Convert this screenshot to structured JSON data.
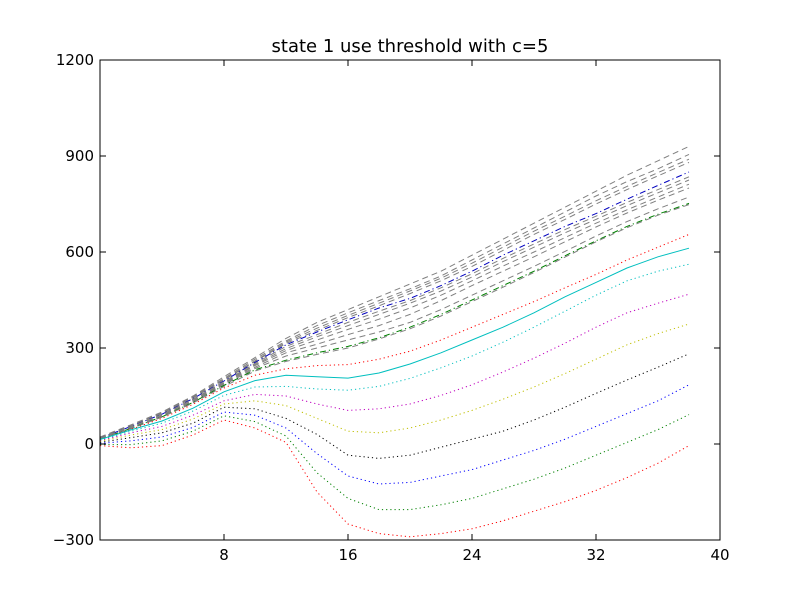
{
  "chart_data": {
    "type": "line",
    "title": "state 1 use threshold with c=5",
    "xlabel": "",
    "ylabel": "",
    "xlim": [
      0,
      40
    ],
    "ylim": [
      -300,
      1200
    ],
    "x_ticks": [
      8,
      16,
      24,
      32,
      40
    ],
    "y_ticks": [
      -300,
      0,
      300,
      600,
      900,
      1200
    ],
    "grid": false,
    "x": [
      0,
      2,
      4,
      6,
      8,
      10,
      12,
      14,
      16,
      18,
      20,
      22,
      24,
      26,
      28,
      30,
      32,
      34,
      36,
      38
    ],
    "series": [
      {
        "color": "#808080",
        "style": "dashed",
        "values": [
          22,
          60,
          100,
          150,
          210,
          270,
          330,
          380,
          420,
          460,
          500,
          540,
          590,
          640,
          690,
          740,
          790,
          840,
          885,
          930
        ]
      },
      {
        "color": "#808080",
        "style": "dashed",
        "values": [
          20,
          58,
          98,
          148,
          205,
          265,
          322,
          370,
          410,
          448,
          485,
          525,
          575,
          625,
          675,
          725,
          775,
          820,
          860,
          905
        ]
      },
      {
        "color": "#808080",
        "style": "dashed",
        "values": [
          20,
          57,
          96,
          146,
          202,
          260,
          318,
          362,
          402,
          440,
          478,
          518,
          565,
          615,
          665,
          712,
          760,
          805,
          848,
          890
        ]
      },
      {
        "color": "#808080",
        "style": "dashed",
        "values": [
          19,
          56,
          95,
          144,
          200,
          258,
          314,
          355,
          395,
          432,
          470,
          510,
          555,
          605,
          655,
          702,
          750,
          795,
          838,
          880
        ]
      },
      {
        "color": "#0000bf",
        "style": "dashdot",
        "values": [
          18,
          55,
          93,
          142,
          197,
          255,
          310,
          350,
          388,
          425,
          455,
          495,
          540,
          590,
          635,
          680,
          720,
          765,
          808,
          850
        ]
      },
      {
        "color": "#808080",
        "style": "dashed",
        "values": [
          18,
          54,
          92,
          140,
          195,
          252,
          305,
          342,
          380,
          415,
          448,
          488,
          532,
          580,
          625,
          670,
          712,
          755,
          795,
          835
        ]
      },
      {
        "color": "#808080",
        "style": "dashed",
        "values": [
          17,
          53,
          90,
          138,
          192,
          248,
          298,
          335,
          370,
          405,
          440,
          478,
          522,
          570,
          615,
          660,
          702,
          745,
          785,
          825
        ]
      },
      {
        "color": "#808080",
        "style": "dashed",
        "values": [
          17,
          52,
          88,
          135,
          190,
          245,
          292,
          325,
          358,
          390,
          425,
          465,
          510,
          556,
          600,
          645,
          690,
          732,
          772,
          812
        ]
      },
      {
        "color": "#808080",
        "style": "dashed",
        "values": [
          16,
          51,
          87,
          133,
          188,
          240,
          285,
          312,
          342,
          370,
          405,
          448,
          495,
          540,
          585,
          632,
          678,
          722,
          762,
          800
        ]
      },
      {
        "color": "#808080",
        "style": "dashed",
        "values": [
          16,
          50,
          86,
          131,
          185,
          236,
          275,
          300,
          325,
          350,
          380,
          420,
          465,
          510,
          555,
          602,
          650,
          695,
          735,
          772
        ]
      },
      {
        "color": "#008000",
        "style": "dashdot",
        "values": [
          15,
          49,
          85,
          130,
          183,
          232,
          262,
          285,
          305,
          332,
          365,
          405,
          450,
          495,
          540,
          588,
          635,
          680,
          718,
          752
        ]
      },
      {
        "color": "#808080",
        "style": "dashed",
        "values": [
          15,
          48,
          84,
          128,
          180,
          228,
          258,
          280,
          300,
          328,
          360,
          400,
          445,
          490,
          536,
          584,
          632,
          676,
          715,
          748
        ]
      },
      {
        "color": "#ff0000",
        "style": "dotted",
        "values": [
          14,
          46,
          80,
          124,
          175,
          215,
          235,
          245,
          248,
          265,
          290,
          325,
          365,
          405,
          445,
          488,
          530,
          575,
          615,
          655
        ]
      },
      {
        "color": "#00bfbf",
        "style": "solid",
        "values": [
          14,
          44,
          72,
          112,
          163,
          198,
          215,
          210,
          206,
          222,
          250,
          285,
          325,
          365,
          410,
          460,
          505,
          550,
          585,
          612
        ]
      },
      {
        "color": "#00bfbf",
        "style": "dotted",
        "values": [
          12,
          40,
          65,
          103,
          152,
          178,
          180,
          172,
          168,
          180,
          205,
          238,
          275,
          318,
          365,
          415,
          465,
          510,
          540,
          562
        ]
      },
      {
        "color": "#bf00bf",
        "style": "dotted",
        "values": [
          10,
          35,
          55,
          90,
          135,
          155,
          150,
          125,
          105,
          110,
          125,
          152,
          185,
          225,
          268,
          315,
          365,
          410,
          440,
          468
        ]
      },
      {
        "color": "#bfbf00",
        "style": "dotted",
        "values": [
          8,
          28,
          45,
          78,
          125,
          135,
          120,
          80,
          40,
          35,
          50,
          75,
          105,
          140,
          178,
          220,
          265,
          310,
          345,
          375
        ]
      },
      {
        "color": "#000000",
        "style": "dotted",
        "values": [
          5,
          20,
          35,
          65,
          115,
          110,
          80,
          30,
          -35,
          -45,
          -35,
          -10,
          15,
          40,
          75,
          115,
          158,
          200,
          240,
          282
        ]
      },
      {
        "color": "#0000ff",
        "style": "dotted",
        "values": [
          2,
          10,
          22,
          52,
          100,
          90,
          50,
          -30,
          -100,
          -125,
          -120,
          -100,
          -80,
          -50,
          -20,
          15,
          55,
          95,
          135,
          185
        ]
      },
      {
        "color": "#008000",
        "style": "dotted",
        "values": [
          -2,
          -2,
          10,
          40,
          88,
          70,
          25,
          -90,
          -170,
          -205,
          -205,
          -190,
          -170,
          -140,
          -110,
          -75,
          -35,
          5,
          45,
          92
        ]
      },
      {
        "color": "#ff0000",
        "style": "dotted",
        "values": [
          -5,
          -12,
          -5,
          28,
          75,
          50,
          5,
          -150,
          -250,
          -280,
          -290,
          -280,
          -265,
          -240,
          -210,
          -180,
          -145,
          -105,
          -60,
          -5
        ]
      }
    ]
  }
}
